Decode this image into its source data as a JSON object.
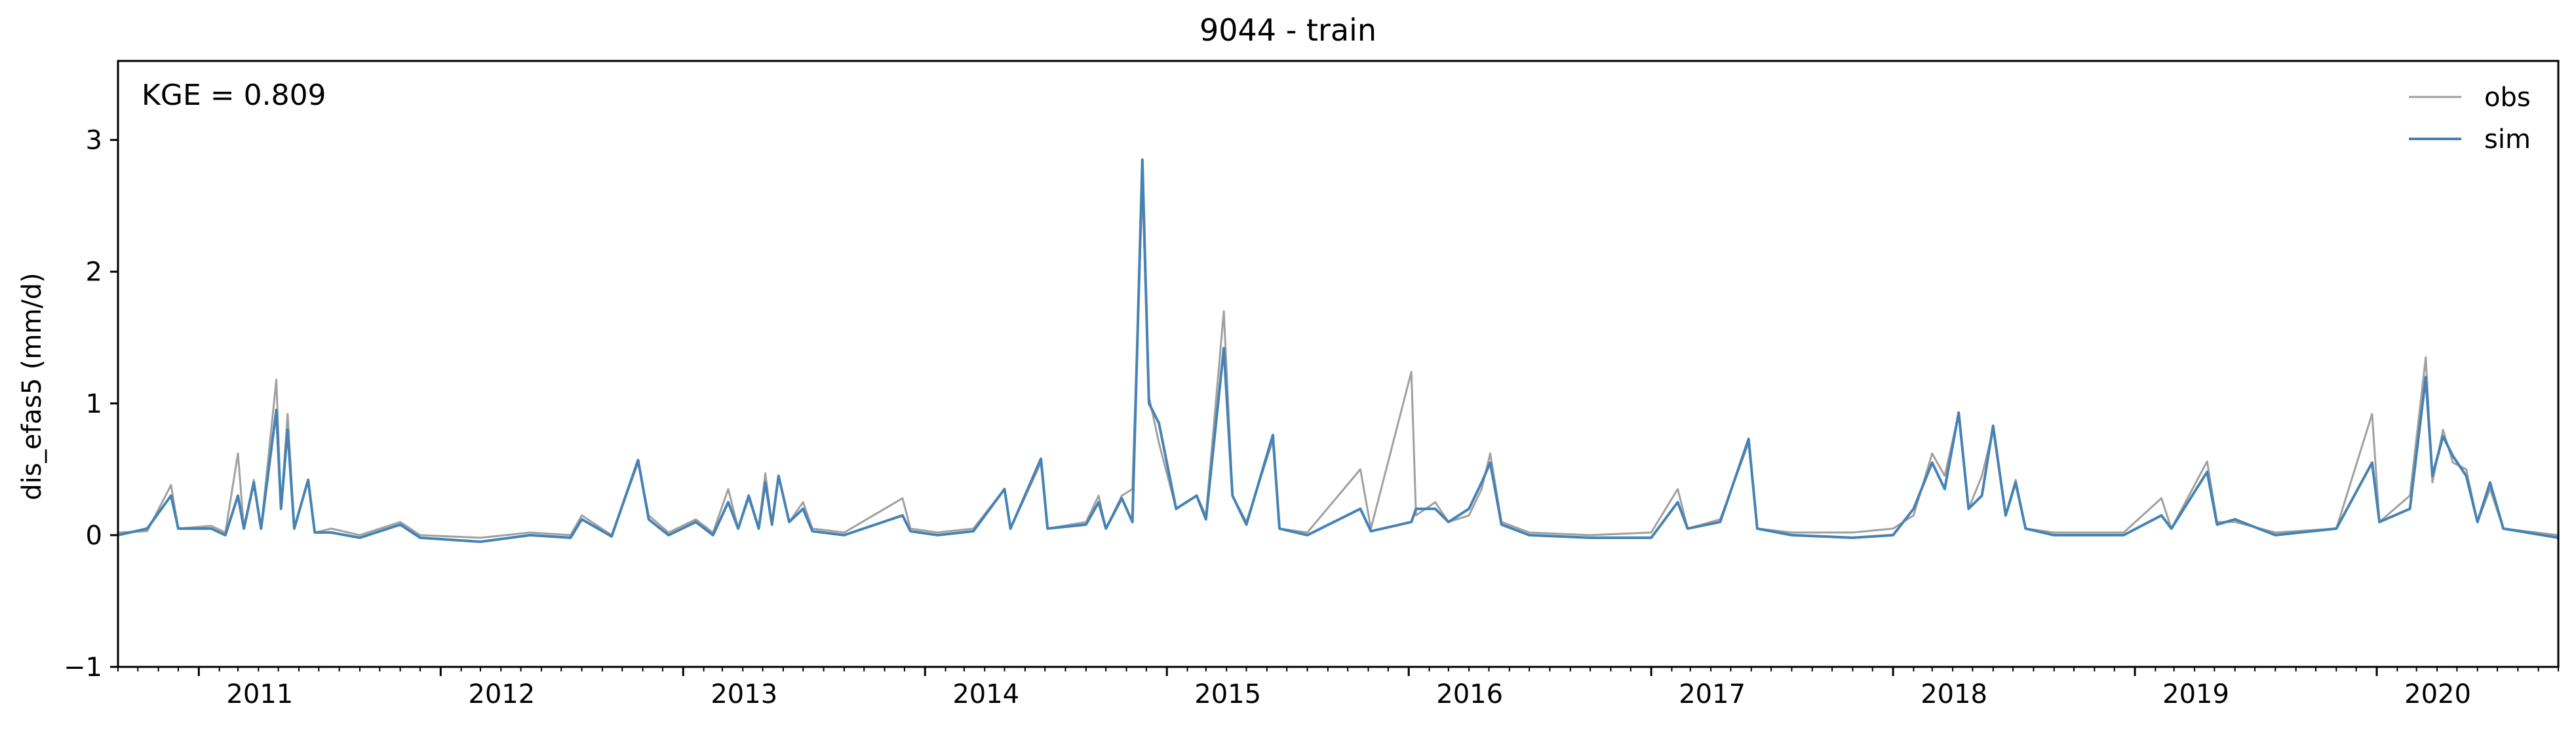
{
  "chart_data": {
    "type": "line",
    "title": "9044 - train",
    "xlabel": "",
    "ylabel": "dis_efas5 (mm/d)",
    "annotation": "KGE = 0.809",
    "xlim": [
      "2010-09-01",
      "2020-10-01"
    ],
    "ylim": [
      -1,
      3.6
    ],
    "yticks": [
      -1,
      0,
      1,
      2,
      3
    ],
    "yticklabels": [
      "−1",
      "0",
      "1",
      "2",
      "3"
    ],
    "xticks": [
      {
        "label": "2011",
        "date": "2011-01-01"
      },
      {
        "label": "2012",
        "date": "2012-01-01"
      },
      {
        "label": "2013",
        "date": "2013-01-01"
      },
      {
        "label": "2014",
        "date": "2014-01-01"
      },
      {
        "label": "2015",
        "date": "2015-01-01"
      },
      {
        "label": "2016",
        "date": "2016-01-01"
      },
      {
        "label": "2017",
        "date": "2017-01-01"
      },
      {
        "label": "2018",
        "date": "2018-01-01"
      },
      {
        "label": "2019",
        "date": "2019-01-01"
      },
      {
        "label": "2020",
        "date": "2020-01-01"
      }
    ],
    "grid": false,
    "legend_position": "top-right",
    "series": [
      {
        "name": "obs",
        "color": "#a0a0a0",
        "points": [
          [
            "2010-09-01",
            0.02
          ],
          [
            "2010-10-15",
            0.03
          ],
          [
            "2010-11-20",
            0.38
          ],
          [
            "2010-12-01",
            0.05
          ],
          [
            "2011-01-20",
            0.07
          ],
          [
            "2011-02-10",
            0.02
          ],
          [
            "2011-03-01",
            0.62
          ],
          [
            "2011-03-10",
            0.05
          ],
          [
            "2011-03-25",
            0.42
          ],
          [
            "2011-04-05",
            0.05
          ],
          [
            "2011-04-28",
            1.18
          ],
          [
            "2011-05-05",
            0.2
          ],
          [
            "2011-05-15",
            0.92
          ],
          [
            "2011-05-25",
            0.05
          ],
          [
            "2011-06-15",
            0.42
          ],
          [
            "2011-06-25",
            0.02
          ],
          [
            "2011-07-20",
            0.05
          ],
          [
            "2011-09-01",
            0.0
          ],
          [
            "2011-11-01",
            0.1
          ],
          [
            "2011-12-01",
            0.0
          ],
          [
            "2012-03-01",
            -0.02
          ],
          [
            "2012-05-15",
            0.02
          ],
          [
            "2012-07-15",
            0.0
          ],
          [
            "2012-08-01",
            0.15
          ],
          [
            "2012-09-15",
            0.0
          ],
          [
            "2012-10-25",
            0.55
          ],
          [
            "2012-11-10",
            0.15
          ],
          [
            "2012-12-10",
            0.02
          ],
          [
            "2013-01-20",
            0.12
          ],
          [
            "2013-02-15",
            0.02
          ],
          [
            "2013-03-10",
            0.35
          ],
          [
            "2013-03-25",
            0.05
          ],
          [
            "2013-04-10",
            0.28
          ],
          [
            "2013-04-25",
            0.05
          ],
          [
            "2013-05-05",
            0.47
          ],
          [
            "2013-05-15",
            0.08
          ],
          [
            "2013-05-25",
            0.45
          ],
          [
            "2013-06-10",
            0.1
          ],
          [
            "2013-07-01",
            0.25
          ],
          [
            "2013-07-15",
            0.05
          ],
          [
            "2013-09-01",
            0.02
          ],
          [
            "2013-11-28",
            0.28
          ],
          [
            "2013-12-10",
            0.05
          ],
          [
            "2014-01-20",
            0.02
          ],
          [
            "2014-03-15",
            0.05
          ],
          [
            "2014-05-01",
            0.35
          ],
          [
            "2014-05-10",
            0.05
          ],
          [
            "2014-06-25",
            0.55
          ],
          [
            "2014-07-05",
            0.05
          ],
          [
            "2014-09-01",
            0.1
          ],
          [
            "2014-09-20",
            0.3
          ],
          [
            "2014-10-01",
            0.05
          ],
          [
            "2014-10-25",
            0.3
          ],
          [
            "2014-11-10",
            0.35
          ],
          [
            "2014-11-25",
            2.65
          ],
          [
            "2014-12-05",
            1.05
          ],
          [
            "2014-12-20",
            0.7
          ],
          [
            "2015-01-15",
            0.2
          ],
          [
            "2015-02-15",
            0.3
          ],
          [
            "2015-03-01",
            0.15
          ],
          [
            "2015-03-28",
            1.7
          ],
          [
            "2015-04-10",
            0.3
          ],
          [
            "2015-05-01",
            0.1
          ],
          [
            "2015-06-10",
            0.72
          ],
          [
            "2015-06-20",
            0.05
          ],
          [
            "2015-08-01",
            0.02
          ],
          [
            "2015-10-20",
            0.5
          ],
          [
            "2015-11-05",
            0.05
          ],
          [
            "2016-01-05",
            1.24
          ],
          [
            "2016-01-12",
            0.15
          ],
          [
            "2016-02-10",
            0.25
          ],
          [
            "2016-03-01",
            0.1
          ],
          [
            "2016-04-01",
            0.15
          ],
          [
            "2016-04-20",
            0.35
          ],
          [
            "2016-05-03",
            0.62
          ],
          [
            "2016-05-20",
            0.1
          ],
          [
            "2016-07-01",
            0.02
          ],
          [
            "2016-10-01",
            0.0
          ],
          [
            "2017-01-01",
            0.02
          ],
          [
            "2017-02-10",
            0.35
          ],
          [
            "2017-02-25",
            0.05
          ],
          [
            "2017-04-15",
            0.12
          ],
          [
            "2017-05-28",
            0.7
          ],
          [
            "2017-06-10",
            0.05
          ],
          [
            "2017-08-01",
            0.02
          ],
          [
            "2017-11-01",
            0.02
          ],
          [
            "2018-01-01",
            0.05
          ],
          [
            "2018-02-01",
            0.15
          ],
          [
            "2018-03-01",
            0.62
          ],
          [
            "2018-03-20",
            0.45
          ],
          [
            "2018-04-10",
            0.92
          ],
          [
            "2018-04-25",
            0.2
          ],
          [
            "2018-05-15",
            0.45
          ],
          [
            "2018-06-01",
            0.8
          ],
          [
            "2018-06-20",
            0.15
          ],
          [
            "2018-07-05",
            0.42
          ],
          [
            "2018-07-20",
            0.05
          ],
          [
            "2018-09-01",
            0.02
          ],
          [
            "2018-12-15",
            0.02
          ],
          [
            "2019-02-10",
            0.28
          ],
          [
            "2019-02-25",
            0.05
          ],
          [
            "2019-04-20",
            0.56
          ],
          [
            "2019-05-05",
            0.1
          ],
          [
            "2019-06-01",
            0.1
          ],
          [
            "2019-08-01",
            0.02
          ],
          [
            "2019-11-01",
            0.05
          ],
          [
            "2019-12-25",
            0.92
          ],
          [
            "2020-01-05",
            0.1
          ],
          [
            "2020-02-20",
            0.3
          ],
          [
            "2020-03-15",
            1.35
          ],
          [
            "2020-03-25",
            0.4
          ],
          [
            "2020-04-10",
            0.8
          ],
          [
            "2020-04-25",
            0.55
          ],
          [
            "2020-05-15",
            0.5
          ],
          [
            "2020-06-01",
            0.1
          ],
          [
            "2020-06-20",
            0.35
          ],
          [
            "2020-07-10",
            0.05
          ],
          [
            "2020-10-01",
            0.0
          ]
        ]
      },
      {
        "name": "sim",
        "color": "#4682b4",
        "points": [
          [
            "2010-09-01",
            0.0
          ],
          [
            "2010-10-15",
            0.05
          ],
          [
            "2010-11-20",
            0.3
          ],
          [
            "2010-12-01",
            0.05
          ],
          [
            "2011-01-20",
            0.05
          ],
          [
            "2011-02-10",
            0.0
          ],
          [
            "2011-03-01",
            0.3
          ],
          [
            "2011-03-10",
            0.05
          ],
          [
            "2011-03-25",
            0.4
          ],
          [
            "2011-04-05",
            0.05
          ],
          [
            "2011-04-28",
            0.95
          ],
          [
            "2011-05-05",
            0.2
          ],
          [
            "2011-05-15",
            0.8
          ],
          [
            "2011-05-25",
            0.05
          ],
          [
            "2011-06-15",
            0.42
          ],
          [
            "2011-06-25",
            0.02
          ],
          [
            "2011-07-20",
            0.02
          ],
          [
            "2011-09-01",
            -0.02
          ],
          [
            "2011-11-01",
            0.08
          ],
          [
            "2011-12-01",
            -0.02
          ],
          [
            "2012-03-01",
            -0.05
          ],
          [
            "2012-05-15",
            0.0
          ],
          [
            "2012-07-15",
            -0.02
          ],
          [
            "2012-08-01",
            0.12
          ],
          [
            "2012-09-15",
            -0.01
          ],
          [
            "2012-10-25",
            0.57
          ],
          [
            "2012-11-10",
            0.12
          ],
          [
            "2012-12-10",
            0.0
          ],
          [
            "2013-01-20",
            0.1
          ],
          [
            "2013-02-15",
            0.0
          ],
          [
            "2013-03-10",
            0.25
          ],
          [
            "2013-03-25",
            0.05
          ],
          [
            "2013-04-10",
            0.3
          ],
          [
            "2013-04-25",
            0.05
          ],
          [
            "2013-05-05",
            0.4
          ],
          [
            "2013-05-15",
            0.08
          ],
          [
            "2013-05-25",
            0.45
          ],
          [
            "2013-06-10",
            0.1
          ],
          [
            "2013-07-01",
            0.2
          ],
          [
            "2013-07-15",
            0.03
          ],
          [
            "2013-09-01",
            0.0
          ],
          [
            "2013-11-28",
            0.15
          ],
          [
            "2013-12-10",
            0.03
          ],
          [
            "2014-01-20",
            0.0
          ],
          [
            "2014-03-15",
            0.03
          ],
          [
            "2014-05-01",
            0.35
          ],
          [
            "2014-05-10",
            0.05
          ],
          [
            "2014-06-25",
            0.58
          ],
          [
            "2014-07-05",
            0.05
          ],
          [
            "2014-09-01",
            0.08
          ],
          [
            "2014-09-20",
            0.25
          ],
          [
            "2014-10-01",
            0.05
          ],
          [
            "2014-10-25",
            0.28
          ],
          [
            "2014-11-10",
            0.1
          ],
          [
            "2014-11-25",
            2.85
          ],
          [
            "2014-12-05",
            1.0
          ],
          [
            "2014-12-20",
            0.85
          ],
          [
            "2015-01-15",
            0.2
          ],
          [
            "2015-02-15",
            0.3
          ],
          [
            "2015-03-01",
            0.12
          ],
          [
            "2015-03-28",
            1.42
          ],
          [
            "2015-04-10",
            0.3
          ],
          [
            "2015-05-01",
            0.08
          ],
          [
            "2015-06-10",
            0.76
          ],
          [
            "2015-06-20",
            0.05
          ],
          [
            "2015-08-01",
            0.0
          ],
          [
            "2015-10-20",
            0.2
          ],
          [
            "2015-11-05",
            0.03
          ],
          [
            "2016-01-05",
            0.1
          ],
          [
            "2016-01-12",
            0.2
          ],
          [
            "2016-02-10",
            0.2
          ],
          [
            "2016-03-01",
            0.1
          ],
          [
            "2016-04-01",
            0.2
          ],
          [
            "2016-04-20",
            0.4
          ],
          [
            "2016-05-03",
            0.55
          ],
          [
            "2016-05-20",
            0.08
          ],
          [
            "2016-07-01",
            0.0
          ],
          [
            "2016-10-01",
            -0.02
          ],
          [
            "2017-01-01",
            -0.02
          ],
          [
            "2017-02-10",
            0.25
          ],
          [
            "2017-02-25",
            0.05
          ],
          [
            "2017-04-15",
            0.1
          ],
          [
            "2017-05-28",
            0.73
          ],
          [
            "2017-06-10",
            0.05
          ],
          [
            "2017-08-01",
            0.0
          ],
          [
            "2017-11-01",
            -0.02
          ],
          [
            "2018-01-01",
            0.0
          ],
          [
            "2018-02-01",
            0.2
          ],
          [
            "2018-03-01",
            0.55
          ],
          [
            "2018-03-20",
            0.35
          ],
          [
            "2018-04-10",
            0.93
          ],
          [
            "2018-04-25",
            0.2
          ],
          [
            "2018-05-15",
            0.3
          ],
          [
            "2018-06-01",
            0.83
          ],
          [
            "2018-06-20",
            0.15
          ],
          [
            "2018-07-05",
            0.4
          ],
          [
            "2018-07-20",
            0.05
          ],
          [
            "2018-09-01",
            0.0
          ],
          [
            "2018-12-15",
            0.0
          ],
          [
            "2019-02-10",
            0.15
          ],
          [
            "2019-02-25",
            0.05
          ],
          [
            "2019-04-20",
            0.48
          ],
          [
            "2019-05-05",
            0.08
          ],
          [
            "2019-06-01",
            0.12
          ],
          [
            "2019-08-01",
            0.0
          ],
          [
            "2019-11-01",
            0.05
          ],
          [
            "2019-12-25",
            0.55
          ],
          [
            "2020-01-05",
            0.1
          ],
          [
            "2020-02-20",
            0.2
          ],
          [
            "2020-03-15",
            1.2
          ],
          [
            "2020-03-25",
            0.45
          ],
          [
            "2020-04-10",
            0.75
          ],
          [
            "2020-04-25",
            0.6
          ],
          [
            "2020-05-15",
            0.45
          ],
          [
            "2020-06-01",
            0.1
          ],
          [
            "2020-06-20",
            0.4
          ],
          [
            "2020-07-10",
            0.05
          ],
          [
            "2020-10-01",
            -0.02
          ]
        ]
      }
    ]
  }
}
